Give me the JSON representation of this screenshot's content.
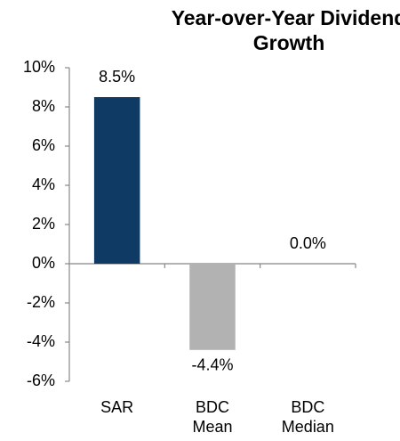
{
  "chart_data": {
    "type": "bar",
    "title": "Year-over-Year Dividend Growth",
    "categories": [
      "SAR",
      "BDC Mean",
      "BDC Median"
    ],
    "values": [
      8.5,
      -4.4,
      0.0
    ],
    "value_labels": [
      "8.5%",
      "-4.4%",
      "0.0%"
    ],
    "colors": [
      "#0e3a63",
      "#b2b2b2",
      "#b2b2b2"
    ],
    "ylim": [
      -6,
      10
    ],
    "yticks": [
      {
        "value": -6,
        "label": "-6%"
      },
      {
        "value": -4,
        "label": "-4%"
      },
      {
        "value": -2,
        "label": "-2%"
      },
      {
        "value": 0,
        "label": "0%"
      },
      {
        "value": 2,
        "label": "2%"
      },
      {
        "value": 4,
        "label": "4%"
      },
      {
        "value": 6,
        "label": "6%"
      },
      {
        "value": 8,
        "label": "8%"
      },
      {
        "value": 10,
        "label": "10%"
      }
    ],
    "grid": false
  }
}
